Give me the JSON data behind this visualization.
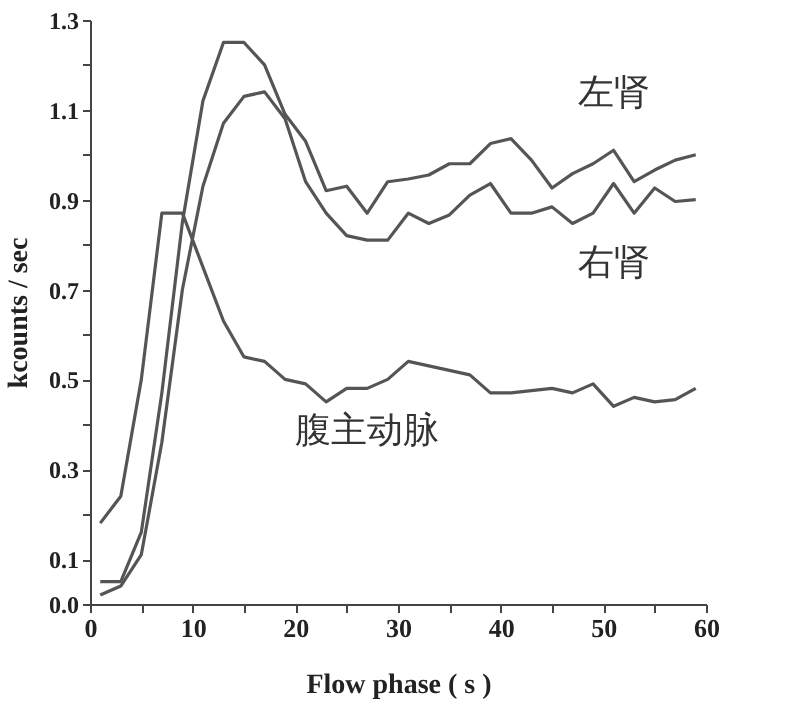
{
  "chart_data": {
    "type": "line",
    "xlabel": "Flow phase ( s )",
    "ylabel": "kcounts / sec",
    "x": [
      1,
      3,
      5,
      7,
      9,
      11,
      13,
      15,
      17,
      19,
      21,
      23,
      25,
      27,
      29,
      31,
      33,
      35,
      37,
      39,
      41,
      43,
      45,
      47,
      49,
      51,
      53,
      55,
      57,
      59
    ],
    "series": [
      {
        "name": "左肾",
        "color": "#555555",
        "values": [
          0.05,
          0.05,
          0.16,
          0.47,
          0.85,
          1.12,
          1.25,
          1.25,
          1.2,
          1.09,
          1.03,
          0.92,
          0.93,
          0.87,
          0.94,
          0.946,
          0.955,
          0.98,
          0.98,
          1.025,
          1.036,
          0.988,
          0.926,
          0.958,
          0.98,
          1.01,
          0.94,
          0.966,
          0.988,
          1.0
        ]
      },
      {
        "name": "右肾",
        "color": "#555555",
        "values": [
          0.02,
          0.04,
          0.11,
          0.36,
          0.7,
          0.93,
          1.07,
          1.13,
          1.14,
          1.08,
          0.94,
          0.87,
          0.82,
          0.81,
          0.81,
          0.87,
          0.847,
          0.866,
          0.91,
          0.936,
          0.87,
          0.87,
          0.884,
          0.847,
          0.87,
          0.936,
          0.87,
          0.926,
          0.896,
          0.9
        ]
      },
      {
        "name": "腹主动脉",
        "color": "#555555",
        "values": [
          0.18,
          0.24,
          0.5,
          0.87,
          0.87,
          0.75,
          0.63,
          0.55,
          0.54,
          0.5,
          0.49,
          0.45,
          0.48,
          0.48,
          0.5,
          0.54,
          0.53,
          0.52,
          0.51,
          0.47,
          0.47,
          0.475,
          0.48,
          0.47,
          0.49,
          0.44,
          0.46,
          0.45,
          0.455,
          0.48
        ]
      }
    ],
    "xlim": [
      0,
      60
    ],
    "ylim": [
      0,
      1.3
    ],
    "xticks": [
      0,
      {
        "value": 5,
        "label": null
      },
      10,
      {
        "value": 15,
        "label": null
      },
      20,
      {
        "value": 25,
        "label": null
      },
      30,
      {
        "value": 35,
        "label": null
      },
      40,
      {
        "value": 45,
        "label": null
      },
      50,
      {
        "value": 55,
        "label": null
      },
      60
    ],
    "yticks": [
      {
        "value": 0,
        "label": "0.0"
      },
      0.1,
      {
        "value": 0.2,
        "label": null
      },
      0.3,
      {
        "value": 0.4,
        "label": null
      },
      0.5,
      {
        "value": 0.6,
        "label": null
      },
      0.7,
      {
        "value": 0.8,
        "label": null
      },
      0.9,
      {
        "value": 1.0,
        "label": null
      },
      1.1,
      {
        "value": 1.2,
        "label": null
      },
      1.3
    ],
    "marker": "none",
    "line_style": "solid"
  }
}
